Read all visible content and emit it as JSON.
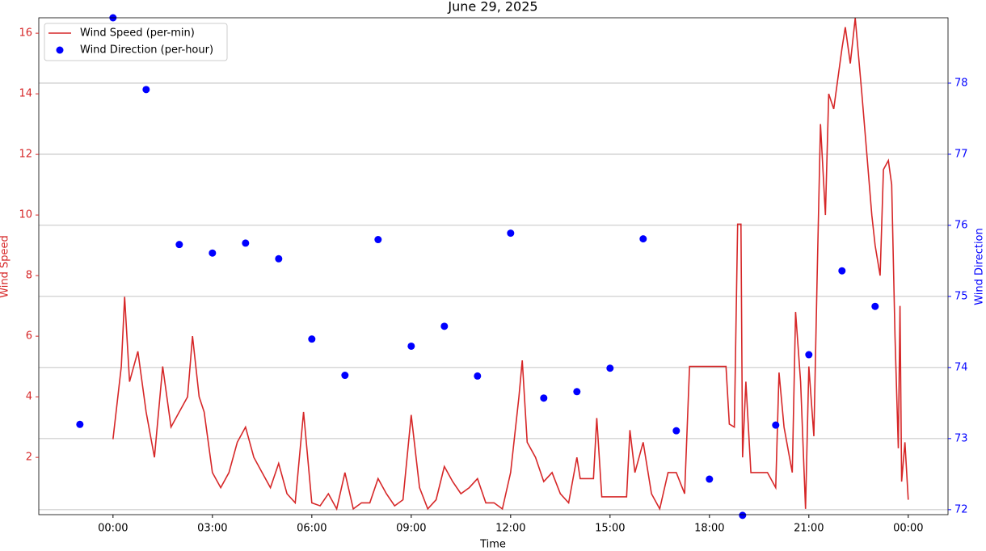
{
  "chart_data": {
    "type": "line",
    "title": "June 29, 2025",
    "xlabel": "Time",
    "ylabel": "Wind Speed",
    "y2label": "Wind Direction",
    "xlim": [
      -2.24,
      25.2
    ],
    "xticks": [
      {
        "value": 0,
        "label": "00:00"
      },
      {
        "value": 3,
        "label": "03:00"
      },
      {
        "value": 6,
        "label": "06:00"
      },
      {
        "value": 9,
        "label": "09:00"
      },
      {
        "value": 12,
        "label": "12:00"
      },
      {
        "value": 15,
        "label": "15:00"
      },
      {
        "value": 18,
        "label": "18:00"
      },
      {
        "value": 21,
        "label": "21:00"
      },
      {
        "value": 24,
        "label": "00:00"
      }
    ],
    "ylim": [
      0.11,
      16.51
    ],
    "yticks": [
      2,
      4,
      6,
      8,
      10,
      12,
      14,
      16
    ],
    "y2lim": [
      71.93,
      78.92
    ],
    "y2ticks": [
      72,
      73,
      74,
      75,
      76,
      77,
      78
    ],
    "grid": "y2",
    "legend": "upper left",
    "series": [
      {
        "name": "Wind Speed (per-min)",
        "type": "line",
        "color": "#d62728",
        "x": [
          0,
          0.25,
          0.35,
          0.5,
          0.75,
          1,
          1.25,
          1.5,
          1.75,
          2,
          2.25,
          2.4,
          2.6,
          2.75,
          3,
          3.25,
          3.5,
          3.75,
          4,
          4.25,
          4.5,
          4.75,
          5,
          5.25,
          5.5,
          5.75,
          6,
          6.25,
          6.5,
          6.75,
          7,
          7.25,
          7.5,
          7.75,
          8,
          8.25,
          8.5,
          8.75,
          9,
          9.25,
          9.5,
          9.75,
          10,
          10.25,
          10.5,
          10.75,
          11,
          11.25,
          11.5,
          11.75,
          12,
          12.25,
          12.35,
          12.5,
          12.75,
          13,
          13.25,
          13.5,
          13.75,
          14,
          14.1,
          14.5,
          14.6,
          14.75,
          15,
          15.5,
          15.6,
          15.75,
          16,
          16.25,
          16.5,
          16.75,
          17,
          17.25,
          17.4,
          18,
          18.5,
          18.6,
          18.75,
          18.85,
          18.95,
          19,
          19.1,
          19.25,
          19.5,
          19.75,
          20,
          20.1,
          20.25,
          20.5,
          20.6,
          20.75,
          20.9,
          21,
          21.15,
          21.25,
          21.35,
          21.5,
          21.6,
          21.75,
          22,
          22.1,
          22.25,
          22.4,
          22.6,
          22.75,
          22.9,
          23,
          23.15,
          23.25,
          23.4,
          23.5,
          23.6,
          23.7,
          23.75,
          23.8,
          23.9,
          24
        ],
        "values": [
          2.6,
          5.0,
          7.3,
          4.5,
          5.5,
          3.5,
          2.0,
          5.0,
          3.0,
          3.5,
          4.0,
          6.0,
          4.0,
          3.5,
          1.5,
          1.0,
          1.5,
          2.5,
          3.0,
          2.0,
          1.5,
          1.0,
          1.8,
          0.8,
          0.5,
          3.5,
          0.5,
          0.4,
          0.8,
          0.3,
          1.5,
          0.3,
          0.5,
          0.5,
          1.3,
          0.8,
          0.4,
          0.6,
          3.4,
          1.0,
          0.3,
          0.6,
          1.7,
          1.2,
          0.8,
          1.0,
          1.3,
          0.5,
          0.5,
          0.3,
          1.5,
          4.0,
          5.2,
          2.5,
          2.0,
          1.2,
          1.5,
          0.8,
          0.5,
          2.0,
          1.3,
          1.3,
          3.3,
          0.7,
          0.7,
          0.7,
          2.9,
          1.5,
          2.5,
          0.8,
          0.3,
          1.5,
          1.5,
          0.8,
          5.0,
          5.0,
          5.0,
          3.1,
          3.0,
          9.7,
          9.7,
          2.0,
          4.5,
          1.5,
          1.5,
          1.5,
          1.0,
          4.8,
          3.0,
          1.5,
          6.8,
          4.5,
          0.3,
          5.0,
          2.7,
          8.0,
          13.0,
          10.0,
          14.0,
          13.5,
          15.5,
          16.2,
          15.0,
          16.5,
          14.0,
          12.0,
          10.0,
          9.0,
          8.0,
          11.5,
          11.8,
          11.0,
          6.0,
          2.3,
          7.0,
          1.2,
          2.5,
          0.6
        ]
      },
      {
        "name": "Wind Direction (per-hour)",
        "type": "scatter",
        "axis": "y2",
        "color": "#0000ff",
        "x": [
          -1,
          0,
          1,
          2,
          3,
          4,
          5,
          6,
          7,
          8,
          9,
          10,
          11,
          12,
          13,
          14,
          15,
          16,
          17,
          18,
          19,
          20,
          21,
          22,
          23
        ],
        "values": [
          73.2,
          78.92,
          77.91,
          75.73,
          75.61,
          75.75,
          75.53,
          74.4,
          73.89,
          75.8,
          74.3,
          74.58,
          73.88,
          75.89,
          73.57,
          73.66,
          73.99,
          75.81,
          73.11,
          72.43,
          71.92,
          73.19,
          74.18,
          75.36,
          74.86
        ]
      }
    ]
  }
}
